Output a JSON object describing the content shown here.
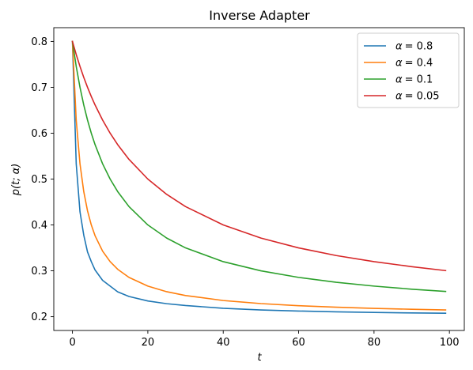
{
  "chart_data": {
    "type": "line",
    "title": "Inverse Adapter",
    "xlabel": "t",
    "ylabel": "p(t; α)",
    "xlim": [
      -4.95,
      103.95
    ],
    "ylim": [
      0.17,
      0.83
    ],
    "xticks": [
      0,
      20,
      40,
      60,
      80,
      100
    ],
    "yticks": [
      0.2,
      0.3,
      0.4,
      0.5,
      0.6,
      0.7,
      0.8
    ],
    "xtick_labels": [
      "0",
      "20",
      "40",
      "60",
      "80",
      "100"
    ],
    "ytick_labels": [
      "0.2",
      "0.3",
      "0.4",
      "0.5",
      "0.6",
      "0.7",
      "0.8"
    ],
    "grid": false,
    "legend_position": "top-right",
    "x": [
      0,
      1,
      2,
      3,
      4,
      5,
      6,
      8,
      10,
      12,
      15,
      20,
      25,
      30,
      40,
      50,
      60,
      70,
      80,
      90,
      99
    ],
    "series": [
      {
        "name": "α = 0.8",
        "legend_prefix": "α",
        "legend_value": "= 0.8",
        "color": "#1f77b4",
        "values": [
          0.8,
          0.5333,
          0.4286,
          0.3778,
          0.3412,
          0.32,
          0.3018,
          0.2792,
          0.2667,
          0.2542,
          0.2441,
          0.2343,
          0.2284,
          0.2244,
          0.2183,
          0.2147,
          0.2124,
          0.2106,
          0.2093,
          0.2082,
          0.2076
        ]
      },
      {
        "name": "α = 0.4",
        "legend_prefix": "α",
        "legend_value": "= 0.4",
        "color": "#ff7f0e",
        "values": [
          0.8,
          0.6286,
          0.5333,
          0.4727,
          0.4308,
          0.4,
          0.3765,
          0.3429,
          0.32,
          0.3034,
          0.2857,
          0.2667,
          0.2545,
          0.2462,
          0.2353,
          0.2286,
          0.224,
          0.2207,
          0.2182,
          0.2162,
          0.2148
        ]
      },
      {
        "name": "α = 0.1",
        "legend_prefix": "α",
        "legend_value": "= 0.1",
        "color": "#2ca02c",
        "values": [
          0.8,
          0.7455,
          0.7,
          0.6615,
          0.6286,
          0.6,
          0.575,
          0.5333,
          0.5,
          0.4727,
          0.44,
          0.4,
          0.3714,
          0.35,
          0.32,
          0.3,
          0.2857,
          0.275,
          0.2667,
          0.26,
          0.255
        ]
      },
      {
        "name": "α = 0.05",
        "legend_prefix": "α",
        "legend_value": "= 0.05",
        "color": "#d62728",
        "values": [
          0.8,
          0.7714,
          0.7455,
          0.7217,
          0.7,
          0.68,
          0.6615,
          0.6286,
          0.6,
          0.575,
          0.5429,
          0.5,
          0.4667,
          0.44,
          0.4,
          0.3714,
          0.35,
          0.3333,
          0.32,
          0.3091,
          0.3005
        ]
      }
    ]
  }
}
